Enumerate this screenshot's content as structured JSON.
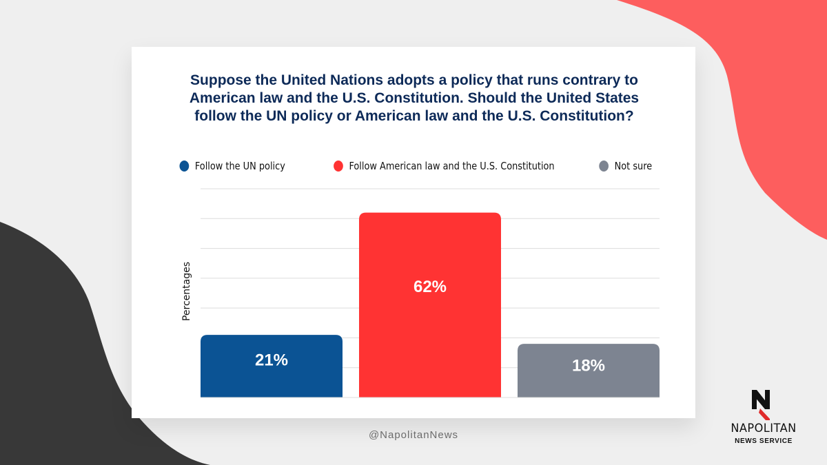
{
  "colors": {
    "un_policy": "#0b5394",
    "american_law": "#ff3333",
    "not_sure": "#7d8491",
    "title": "#0d2a58",
    "background_coral": "#fd5e5e",
    "background_dark": "#383838"
  },
  "chart_data": {
    "type": "bar",
    "title": "Suppose the United Nations adopts a policy that runs contrary to American law and the U.S. Constitution. Should the United States follow the UN policy or American law and the U.S. Constitution?",
    "ylabel": "Percentages",
    "xlabel": "",
    "ylim": [
      0,
      70
    ],
    "grid": true,
    "legend_position": "top-center",
    "categories": [
      "Follow the UN policy",
      "Follow American law and the U.S. Constitution",
      "Not sure"
    ],
    "values": [
      21,
      62,
      18
    ],
    "data_labels": [
      "21%",
      "62%",
      "18%"
    ],
    "bar_colors": [
      "#0b5394",
      "#ff3333",
      "#7d8491"
    ]
  },
  "footer": {
    "handle": "@NapolitanNews",
    "brand_name": "NAPOLITAN",
    "brand_sub": "NEWS SERVICE"
  }
}
